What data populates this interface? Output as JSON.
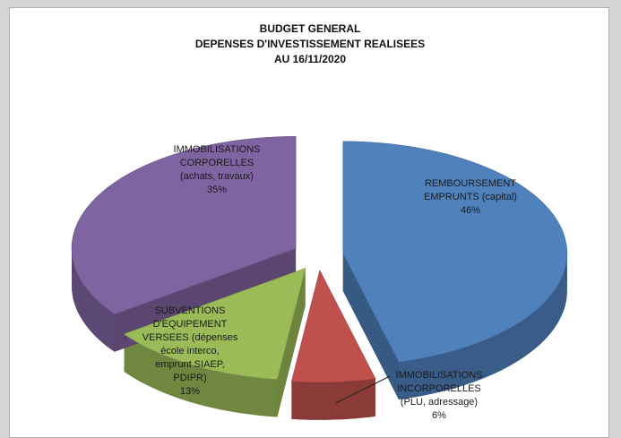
{
  "chart_data": {
    "type": "pie",
    "title": "BUDGET GENERAL\nDEPENSES D'INVESTISSEMENT REALISEES\nAU 16/11/2020",
    "categories": [
      "REMBOURSEMENT\nEMPRUNTS  (capital)",
      "IMMOBILISATIONS\nINCORPORELLES\n(PLU, adressage)",
      "SUBVENTIONS\nD'EQUIPEMENT\nVERSEES  (dépenses\nécole interco,\nemprunt SIAEP,\nPDIPR)",
      "IMMOBILISATIONS\nCORPORELLES\n(achats, travaux)"
    ],
    "values": [
      46,
      6,
      13,
      35
    ],
    "value_labels": [
      "46%",
      "6%",
      "13%",
      "35%"
    ],
    "colors": [
      "#4f81bd",
      "#c0504d",
      "#9bbb59",
      "#8064a2"
    ]
  }
}
